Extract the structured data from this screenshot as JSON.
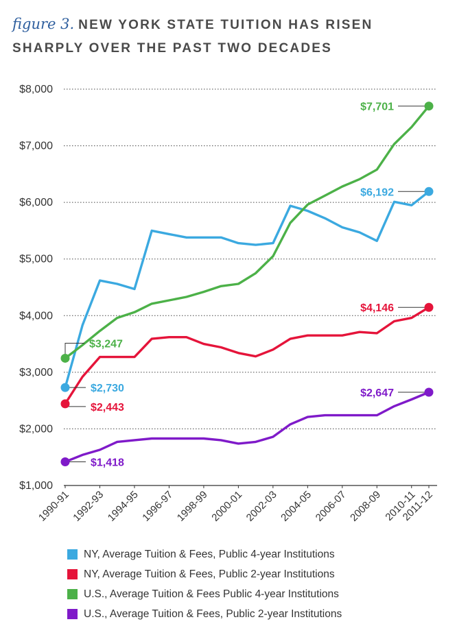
{
  "title": {
    "figure_label": "figure 3.",
    "line1": "NEW YORK STATE TUITION HAS RISEN",
    "line2": "SHARPLY OVER THE PAST TWO DECADES"
  },
  "chart_data": {
    "type": "line",
    "title": "figure 3. NEW YORK STATE TUITION HAS RISEN SHARPLY OVER THE PAST TWO DECADES",
    "xlabel": "",
    "ylabel": "",
    "ylim": [
      1000,
      8000
    ],
    "y_ticks": [
      1000,
      2000,
      3000,
      4000,
      5000,
      6000,
      7000,
      8000
    ],
    "y_tick_labels": [
      "$1,000",
      "$2,000",
      "$3,000",
      "$4,000",
      "$5,000",
      "$6,000",
      "$7,000",
      "$8,000"
    ],
    "grid": "horizontal dotted",
    "legend_position": "bottom",
    "x": [
      "1990-91",
      "1991-92",
      "1992-93",
      "1993-94",
      "1994-95",
      "1995-96",
      "1996-97",
      "1997-98",
      "1998-99",
      "1999-00",
      "2000-01",
      "2001-02",
      "2002-03",
      "2003-04",
      "2004-05",
      "2005-06",
      "2006-07",
      "2007-08",
      "2008-09",
      "2009-10",
      "2010-11",
      "2011-12"
    ],
    "x_tick_labels": [
      "1990-91",
      "1992-93",
      "1994-95",
      "1996-97",
      "1998-99",
      "2000-01",
      "2002-03",
      "2004-05",
      "2006-07",
      "2008-09",
      "2010-11",
      "2011-12"
    ],
    "series": [
      {
        "name": "NY, Average Tuition & Fees, Public 4-year Institutions",
        "color": "#3ba9e0",
        "values": [
          2730,
          3830,
          4620,
          4560,
          4470,
          5500,
          5440,
          5380,
          5380,
          5380,
          5280,
          5250,
          5280,
          5940,
          5850,
          5720,
          5560,
          5470,
          5320,
          6010,
          5950,
          6192
        ],
        "start_label": "$2,730",
        "end_label": "$6,192"
      },
      {
        "name": "NY, Average Tuition & Fees, Public 2-year Institutions",
        "color": "#e5143a",
        "values": [
          2443,
          2920,
          3270,
          3270,
          3270,
          3590,
          3620,
          3620,
          3500,
          3440,
          3340,
          3280,
          3400,
          3590,
          3650,
          3650,
          3650,
          3710,
          3690,
          3900,
          3960,
          4146
        ],
        "start_label": "$2,443",
        "end_label": "$4,146"
      },
      {
        "name": "U.S., Average Tuition & Fees Public 4-year Institutions",
        "color": "#4cb148",
        "values": [
          3247,
          3480,
          3730,
          3960,
          4060,
          4210,
          4270,
          4330,
          4420,
          4520,
          4560,
          4750,
          5050,
          5640,
          5960,
          6120,
          6280,
          6410,
          6580,
          7030,
          7330,
          7701
        ],
        "start_label": "$3,247",
        "end_label": "$7,701"
      },
      {
        "name": "U.S., Average Tuition & Fees, Public 2-year Institutions",
        "color": "#7f1ac9",
        "values": [
          1418,
          1540,
          1630,
          1770,
          1800,
          1830,
          1830,
          1830,
          1830,
          1800,
          1740,
          1770,
          1860,
          2080,
          2210,
          2240,
          2240,
          2240,
          2240,
          2400,
          2520,
          2647
        ],
        "start_label": "$1,418",
        "end_label": "$2,647"
      }
    ]
  }
}
